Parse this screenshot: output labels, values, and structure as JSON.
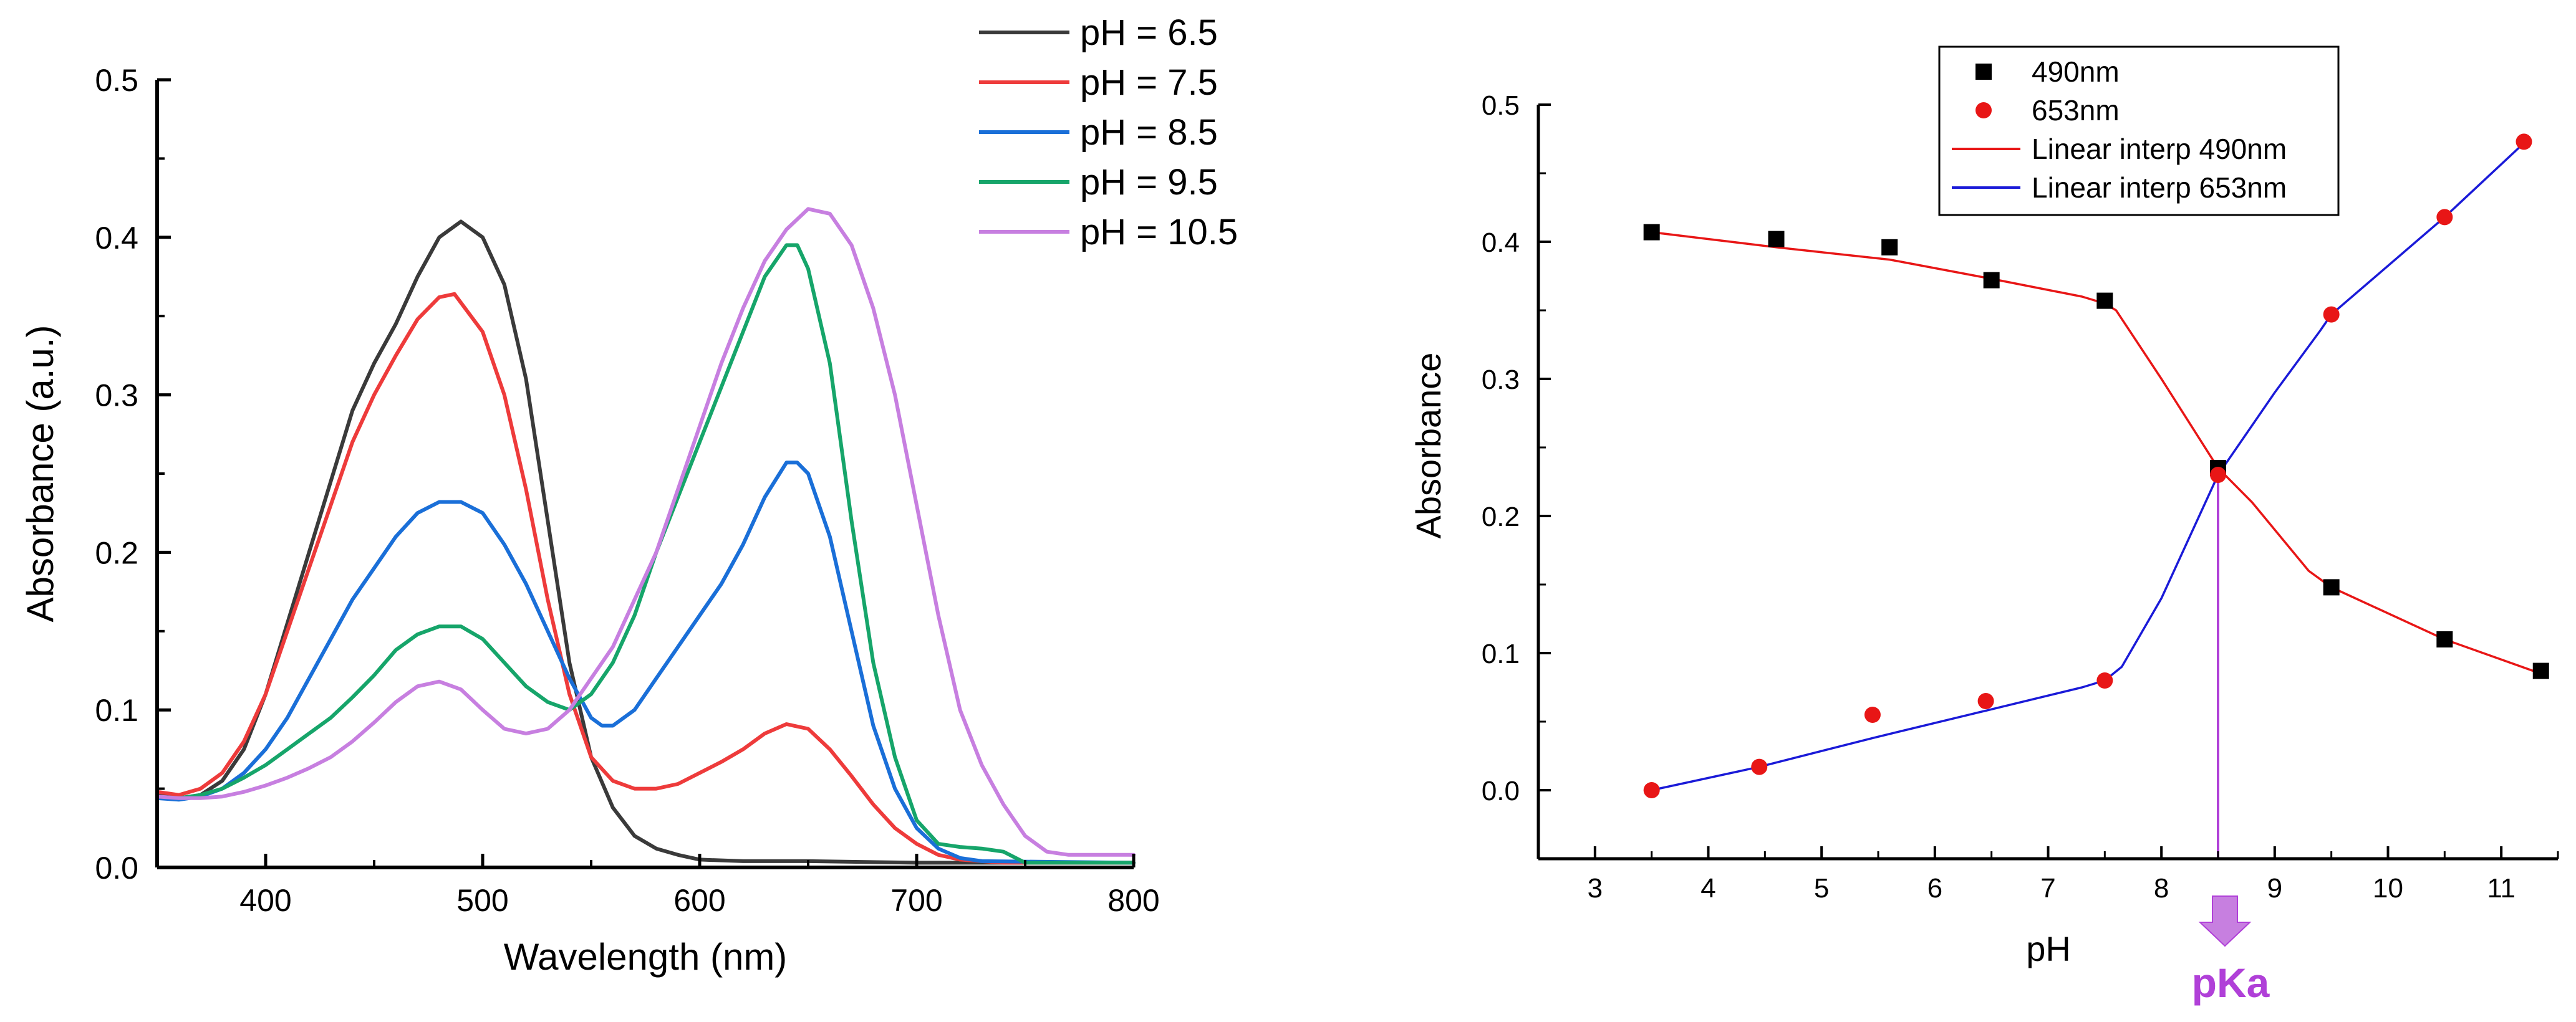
{
  "colors": {
    "ph65": "#3a3a3a",
    "ph75": "#ee3b3b",
    "ph85": "#1a6fd8",
    "ph95": "#16a56a",
    "ph105": "#c77fe0",
    "marker490": "#000000",
    "marker653": "#e81616",
    "interp490": "#e81616",
    "interp653": "#1a1ad8",
    "pka": "#b040d8"
  },
  "chart_data": [
    {
      "type": "line",
      "xlabel": "Wavelength (nm)",
      "ylabel": "Absorbance (a.u.)",
      "xlim": [
        350,
        800
      ],
      "ylim": [
        0,
        0.5
      ],
      "xticks": [
        "400",
        "500",
        "600",
        "700",
        "800"
      ],
      "yticks": [
        "0.0",
        "0.1",
        "0.2",
        "0.3",
        "0.4",
        "0.5"
      ],
      "grid": false,
      "legend_position": "top-right",
      "series": [
        {
          "name": "pH = 6.5",
          "color_key": "ph65",
          "points": [
            [
              350,
              0.046
            ],
            [
              360,
              0.044
            ],
            [
              370,
              0.046
            ],
            [
              380,
              0.055
            ],
            [
              390,
              0.075
            ],
            [
              400,
              0.11
            ],
            [
              410,
              0.155
            ],
            [
              420,
              0.2
            ],
            [
              430,
              0.245
            ],
            [
              440,
              0.29
            ],
            [
              450,
              0.32
            ],
            [
              460,
              0.345
            ],
            [
              470,
              0.375
            ],
            [
              480,
              0.4
            ],
            [
              490,
              0.41
            ],
            [
              500,
              0.4
            ],
            [
              510,
              0.37
            ],
            [
              520,
              0.31
            ],
            [
              530,
              0.22
            ],
            [
              540,
              0.13
            ],
            [
              550,
              0.07
            ],
            [
              560,
              0.038
            ],
            [
              570,
              0.02
            ],
            [
              580,
              0.012
            ],
            [
              590,
              0.008
            ],
            [
              600,
              0.005
            ],
            [
              620,
              0.004
            ],
            [
              650,
              0.004
            ],
            [
              700,
              0.003
            ],
            [
              750,
              0.003
            ],
            [
              800,
              0.003
            ]
          ]
        },
        {
          "name": "pH = 7.5",
          "color_key": "ph75",
          "points": [
            [
              350,
              0.048
            ],
            [
              360,
              0.046
            ],
            [
              370,
              0.05
            ],
            [
              380,
              0.06
            ],
            [
              390,
              0.08
            ],
            [
              400,
              0.11
            ],
            [
              410,
              0.15
            ],
            [
              420,
              0.19
            ],
            [
              430,
              0.23
            ],
            [
              440,
              0.27
            ],
            [
              450,
              0.3
            ],
            [
              460,
              0.325
            ],
            [
              470,
              0.348
            ],
            [
              480,
              0.362
            ],
            [
              487,
              0.364
            ],
            [
              500,
              0.34
            ],
            [
              510,
              0.3
            ],
            [
              520,
              0.24
            ],
            [
              530,
              0.17
            ],
            [
              540,
              0.11
            ],
            [
              550,
              0.07
            ],
            [
              560,
              0.055
            ],
            [
              570,
              0.05
            ],
            [
              580,
              0.05
            ],
            [
              590,
              0.053
            ],
            [
              600,
              0.06
            ],
            [
              610,
              0.067
            ],
            [
              620,
              0.075
            ],
            [
              630,
              0.085
            ],
            [
              640,
              0.091
            ],
            [
              650,
              0.088
            ],
            [
              660,
              0.075
            ],
            [
              670,
              0.058
            ],
            [
              680,
              0.04
            ],
            [
              690,
              0.025
            ],
            [
              700,
              0.015
            ],
            [
              710,
              0.008
            ],
            [
              720,
              0.005
            ],
            [
              740,
              0.003
            ],
            [
              800,
              0.003
            ]
          ]
        },
        {
          "name": "pH = 8.5",
          "color_key": "ph85",
          "points": [
            [
              350,
              0.044
            ],
            [
              360,
              0.043
            ],
            [
              370,
              0.045
            ],
            [
              380,
              0.05
            ],
            [
              390,
              0.06
            ],
            [
              400,
              0.075
            ],
            [
              410,
              0.095
            ],
            [
              420,
              0.12
            ],
            [
              430,
              0.145
            ],
            [
              440,
              0.17
            ],
            [
              450,
              0.19
            ],
            [
              460,
              0.21
            ],
            [
              470,
              0.225
            ],
            [
              480,
              0.232
            ],
            [
              490,
              0.232
            ],
            [
              500,
              0.225
            ],
            [
              510,
              0.205
            ],
            [
              520,
              0.18
            ],
            [
              530,
              0.15
            ],
            [
              540,
              0.12
            ],
            [
              550,
              0.095
            ],
            [
              555,
              0.09
            ],
            [
              560,
              0.09
            ],
            [
              570,
              0.1
            ],
            [
              580,
              0.12
            ],
            [
              590,
              0.14
            ],
            [
              600,
              0.16
            ],
            [
              610,
              0.18
            ],
            [
              620,
              0.205
            ],
            [
              630,
              0.235
            ],
            [
              640,
              0.257
            ],
            [
              645,
              0.257
            ],
            [
              650,
              0.25
            ],
            [
              660,
              0.21
            ],
            [
              670,
              0.15
            ],
            [
              680,
              0.09
            ],
            [
              690,
              0.05
            ],
            [
              700,
              0.025
            ],
            [
              710,
              0.012
            ],
            [
              720,
              0.006
            ],
            [
              730,
              0.004
            ],
            [
              800,
              0.003
            ]
          ]
        },
        {
          "name": "pH = 9.5",
          "color_key": "ph95",
          "points": [
            [
              350,
              0.045
            ],
            [
              360,
              0.044
            ],
            [
              370,
              0.046
            ],
            [
              380,
              0.05
            ],
            [
              390,
              0.057
            ],
            [
              400,
              0.065
            ],
            [
              410,
              0.075
            ],
            [
              420,
              0.085
            ],
            [
              430,
              0.095
            ],
            [
              440,
              0.108
            ],
            [
              450,
              0.122
            ],
            [
              460,
              0.138
            ],
            [
              470,
              0.148
            ],
            [
              480,
              0.153
            ],
            [
              490,
              0.153
            ],
            [
              500,
              0.145
            ],
            [
              510,
              0.13
            ],
            [
              520,
              0.115
            ],
            [
              530,
              0.105
            ],
            [
              540,
              0.1
            ],
            [
              550,
              0.11
            ],
            [
              560,
              0.13
            ],
            [
              570,
              0.16
            ],
            [
              580,
              0.2
            ],
            [
              590,
              0.235
            ],
            [
              600,
              0.27
            ],
            [
              610,
              0.305
            ],
            [
              620,
              0.34
            ],
            [
              630,
              0.375
            ],
            [
              640,
              0.395
            ],
            [
              645,
              0.395
            ],
            [
              650,
              0.38
            ],
            [
              660,
              0.32
            ],
            [
              670,
              0.22
            ],
            [
              680,
              0.13
            ],
            [
              690,
              0.07
            ],
            [
              700,
              0.03
            ],
            [
              710,
              0.015
            ],
            [
              720,
              0.013
            ],
            [
              730,
              0.012
            ],
            [
              740,
              0.01
            ],
            [
              750,
              0.003
            ],
            [
              800,
              0.003
            ]
          ]
        },
        {
          "name": "pH = 10.5",
          "color_key": "ph105",
          "points": [
            [
              350,
              0.045
            ],
            [
              360,
              0.044
            ],
            [
              370,
              0.044
            ],
            [
              380,
              0.045
            ],
            [
              390,
              0.048
            ],
            [
              400,
              0.052
            ],
            [
              410,
              0.057
            ],
            [
              420,
              0.063
            ],
            [
              430,
              0.07
            ],
            [
              440,
              0.08
            ],
            [
              450,
              0.092
            ],
            [
              460,
              0.105
            ],
            [
              470,
              0.115
            ],
            [
              480,
              0.118
            ],
            [
              490,
              0.113
            ],
            [
              500,
              0.1
            ],
            [
              510,
              0.088
            ],
            [
              520,
              0.085
            ],
            [
              530,
              0.088
            ],
            [
              540,
              0.1
            ],
            [
              550,
              0.12
            ],
            [
              560,
              0.14
            ],
            [
              570,
              0.17
            ],
            [
              580,
              0.2
            ],
            [
              590,
              0.24
            ],
            [
              600,
              0.28
            ],
            [
              610,
              0.32
            ],
            [
              620,
              0.355
            ],
            [
              630,
              0.385
            ],
            [
              640,
              0.405
            ],
            [
              650,
              0.418
            ],
            [
              660,
              0.415
            ],
            [
              670,
              0.395
            ],
            [
              680,
              0.355
            ],
            [
              690,
              0.3
            ],
            [
              700,
              0.23
            ],
            [
              710,
              0.16
            ],
            [
              720,
              0.1
            ],
            [
              730,
              0.065
            ],
            [
              740,
              0.04
            ],
            [
              750,
              0.02
            ],
            [
              760,
              0.01
            ],
            [
              770,
              0.008
            ],
            [
              800,
              0.008
            ]
          ]
        }
      ]
    },
    {
      "type": "scatter",
      "xlabel": "pH",
      "ylabel": "Absorbance",
      "xlim": [
        2.5,
        11.5
      ],
      "ylim": [
        -0.05,
        0.5
      ],
      "xticks": [
        "3",
        "4",
        "5",
        "6",
        "7",
        "8",
        "9",
        "10",
        "11"
      ],
      "yticks": [
        "0.0",
        "0.1",
        "0.2",
        "0.3",
        "0.4",
        "0.5"
      ],
      "grid": false,
      "legend_position": "top-center",
      "series": [
        {
          "name": "490nm",
          "kind": "marker-square",
          "color_key": "marker490",
          "points": [
            [
              3.5,
              0.407
            ],
            [
              4.6,
              0.402
            ],
            [
              5.6,
              0.396
            ],
            [
              6.5,
              0.372
            ],
            [
              7.5,
              0.357
            ],
            [
              8.5,
              0.235
            ],
            [
              9.5,
              0.148
            ],
            [
              10.5,
              0.11
            ],
            [
              11.35,
              0.087
            ]
          ]
        },
        {
          "name": "653nm",
          "kind": "marker-circle",
          "color_key": "marker653",
          "points": [
            [
              3.5,
              0.0
            ],
            [
              4.45,
              0.017
            ],
            [
              5.45,
              0.055
            ],
            [
              6.45,
              0.065
            ],
            [
              7.5,
              0.08
            ],
            [
              8.5,
              0.23
            ],
            [
              9.5,
              0.347
            ],
            [
              10.5,
              0.418
            ],
            [
              11.2,
              0.473
            ]
          ]
        },
        {
          "name": "Linear interp 490nm",
          "kind": "line",
          "color_key": "interp490",
          "points": [
            [
              3.5,
              0.407
            ],
            [
              4.6,
              0.396
            ],
            [
              5.6,
              0.387
            ],
            [
              6.5,
              0.373
            ],
            [
              7.3,
              0.36
            ],
            [
              7.5,
              0.355
            ],
            [
              7.6,
              0.35
            ],
            [
              8.0,
              0.3
            ],
            [
              8.5,
              0.235
            ],
            [
              8.8,
              0.21
            ],
            [
              9.3,
              0.16
            ],
            [
              9.5,
              0.148
            ],
            [
              10.5,
              0.11
            ],
            [
              11.35,
              0.085
            ]
          ]
        },
        {
          "name": "Linear interp 653nm",
          "kind": "line",
          "color_key": "interp653",
          "points": [
            [
              3.5,
              0.0
            ],
            [
              4.45,
              0.017
            ],
            [
              5.45,
              0.038
            ],
            [
              6.45,
              0.058
            ],
            [
              7.3,
              0.075
            ],
            [
              7.5,
              0.08
            ],
            [
              7.65,
              0.09
            ],
            [
              8.0,
              0.14
            ],
            [
              8.5,
              0.23
            ],
            [
              9.0,
              0.29
            ],
            [
              9.4,
              0.335
            ],
            [
              9.5,
              0.347
            ],
            [
              10.5,
              0.418
            ],
            [
              11.2,
              0.472
            ]
          ]
        }
      ],
      "annotation": {
        "label": "pKa",
        "x": 8.5
      }
    }
  ]
}
